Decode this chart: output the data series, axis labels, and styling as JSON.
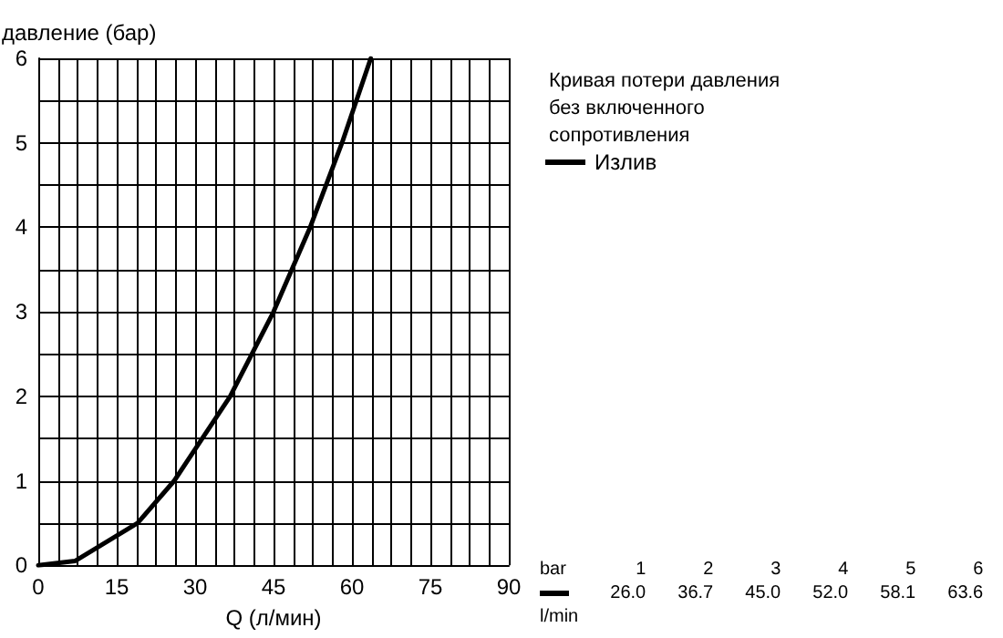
{
  "chart_data": {
    "type": "line",
    "title": "Кривая потери давления без включенного сопротивления",
    "xlabel": "Q (л/мин)",
    "ylabel": "давление (бар)",
    "series": [
      {
        "name": "Излив",
        "color": "#000000",
        "x": [
          0,
          7,
          19,
          26.0,
          36.7,
          45.0,
          52.0,
          58.1,
          63.6
        ],
        "values": [
          0,
          0.05,
          0.5,
          1,
          2,
          3,
          4,
          5,
          6
        ]
      }
    ],
    "xlim": [
      0,
      90
    ],
    "xticks": [
      0,
      15,
      30,
      45,
      60,
      75,
      90
    ],
    "ylim": [
      0,
      6
    ],
    "yticks": [
      0,
      1,
      2,
      3,
      4,
      5,
      6
    ],
    "grid": true,
    "legend": "right",
    "marker": "none",
    "line_style": "solid",
    "annotations": [
      "bar",
      "1",
      "2",
      "3",
      "4",
      "5",
      "6",
      "26.0",
      "36.7",
      "45.0",
      "52.0",
      "58.1",
      "63.6",
      "l/min"
    ]
  }
}
